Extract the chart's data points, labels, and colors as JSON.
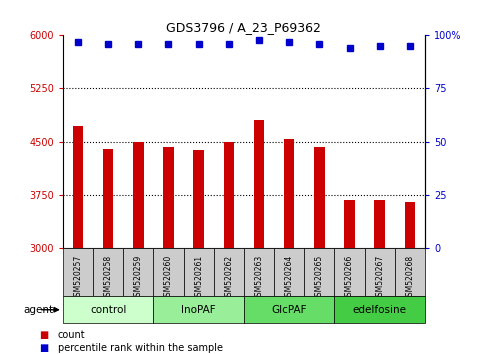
{
  "title": "GDS3796 / A_23_P69362",
  "samples": [
    "GSM520257",
    "GSM520258",
    "GSM520259",
    "GSM520260",
    "GSM520261",
    "GSM520262",
    "GSM520263",
    "GSM520264",
    "GSM520265",
    "GSM520266",
    "GSM520267",
    "GSM520268"
  ],
  "bar_values": [
    4720,
    4400,
    4490,
    4430,
    4380,
    4490,
    4800,
    4540,
    4430,
    3680,
    3680,
    3640
  ],
  "percentile_values": [
    97,
    96,
    96,
    96,
    96,
    96,
    98,
    97,
    96,
    94,
    95,
    95
  ],
  "bar_color": "#cc0000",
  "dot_color": "#0000cc",
  "ylim_left": [
    3000,
    6000
  ],
  "ylim_right": [
    0,
    100
  ],
  "yticks_left": [
    3000,
    3750,
    4500,
    5250,
    6000
  ],
  "yticks_right": [
    0,
    25,
    50,
    75,
    100
  ],
  "groups": [
    {
      "label": "control",
      "start": 0,
      "end": 3,
      "color": "#ccffcc"
    },
    {
      "label": "InoPAF",
      "start": 3,
      "end": 6,
      "color": "#99ee99"
    },
    {
      "label": "GlcPAF",
      "start": 6,
      "end": 9,
      "color": "#66dd66"
    },
    {
      "label": "edelfosine",
      "start": 9,
      "end": 12,
      "color": "#44cc44"
    }
  ],
  "legend_count_color": "#cc0000",
  "legend_dot_color": "#0000cc",
  "left_tick_color": "#cc0000",
  "right_tick_color": "#0000cc",
  "grid_color": "#000000",
  "bg_sample_color": "#cccccc",
  "bar_width": 0.35
}
